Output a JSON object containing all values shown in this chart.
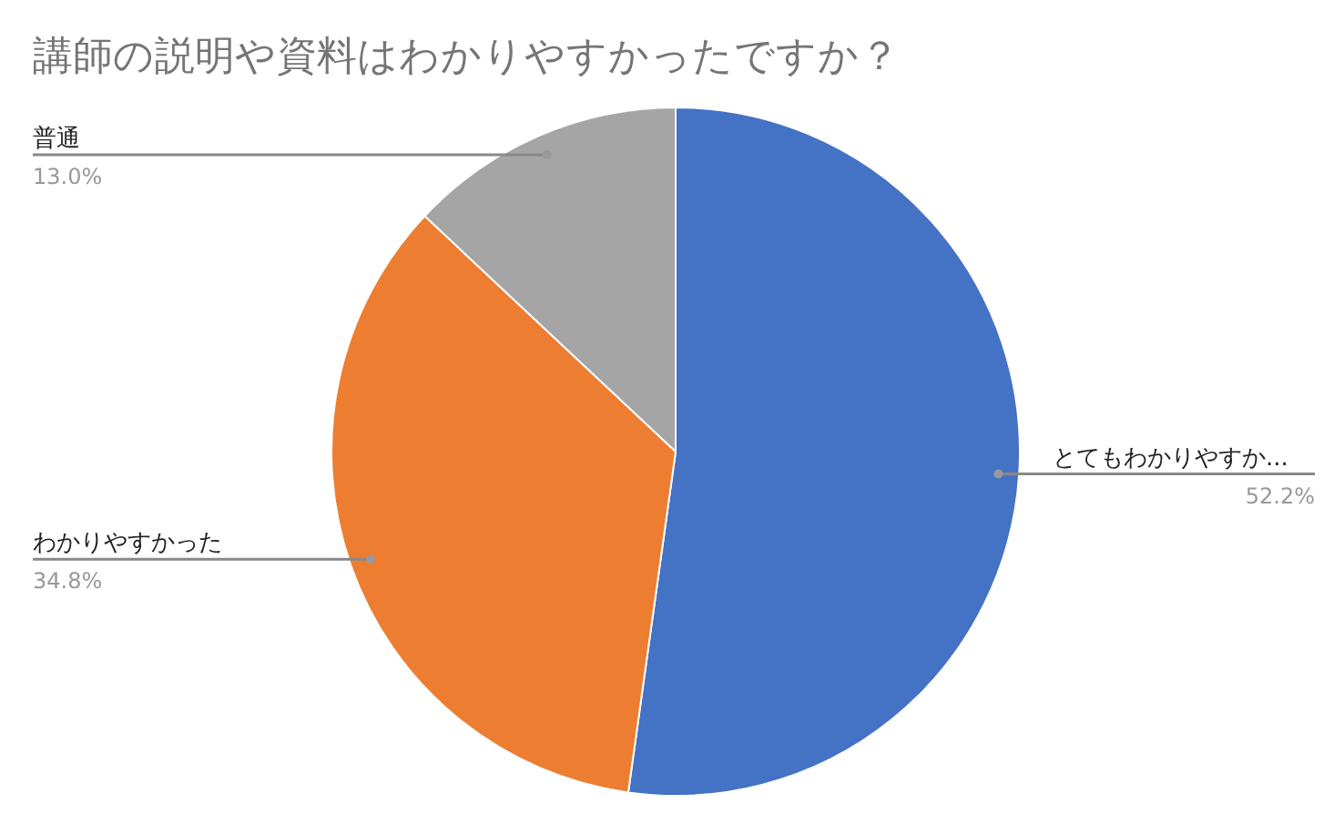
{
  "chart_data": {
    "type": "pie",
    "title": "講師の説明や資料はわかりやすかったですか？",
    "categories": [
      "とてもわかりやすか...",
      "わかりやすかった",
      "普通"
    ],
    "values": [
      52.2,
      34.8,
      13.0
    ],
    "colors": [
      "#4472c4",
      "#ed7d31",
      "#a5a5a5"
    ],
    "value_labels": [
      "52.2%",
      "34.8%",
      "13.0%"
    ]
  }
}
